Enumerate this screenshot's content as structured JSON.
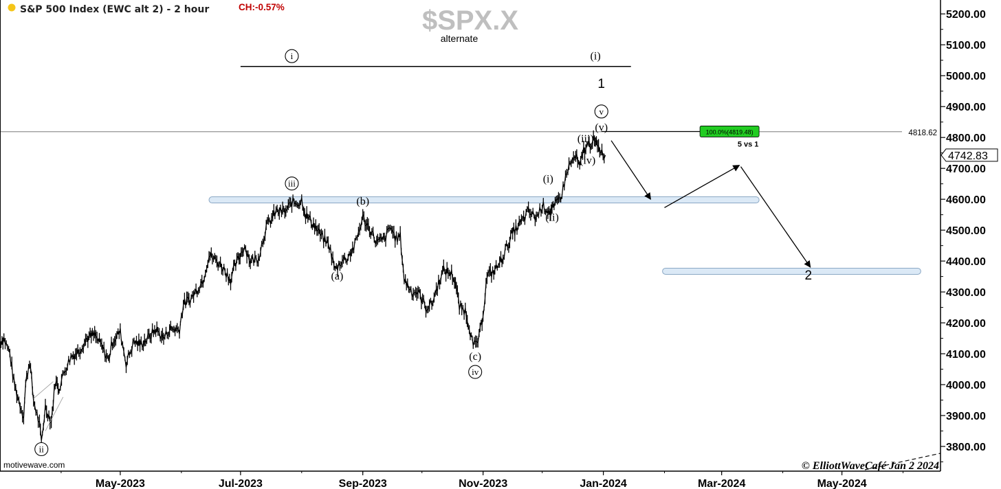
{
  "header": {
    "title": "S&P 500 Index (EWC alt 2) - 2 hour",
    "change": "CH:-0.57%",
    "dot_color": "#f5c518",
    "change_color": "#c00000"
  },
  "watermark": {
    "symbol": "$SPX.X",
    "subtitle": "alternate"
  },
  "footer": {
    "source": "motivewave.com",
    "credit": "© ElliottWaveCafé  Jan 2 2024"
  },
  "colors": {
    "price": "#000000",
    "zone_fill": "#dbe9f6",
    "zone_stroke": "#8aa7c4",
    "target_fill": "#22cc22",
    "axis": "#000000",
    "grid": "#e6e6e6"
  },
  "chart_data": {
    "type": "line",
    "title": "S&P 500 Index (EWC alt 2) - 2 hour",
    "xlabel": "",
    "ylabel": "",
    "x_ticks": [
      "May-2023",
      "Jul-2023",
      "Sep-2023",
      "Nov-2023",
      "Jan-2024",
      "Mar-2024",
      "May-2024"
    ],
    "y_ticks": [
      "3800.00",
      "3900.00",
      "4000.00",
      "4100.00",
      "4200.00",
      "4300.00",
      "4400.00",
      "4500.00",
      "4600.00",
      "4700.00",
      "4800.00",
      "4900.00",
      "5000.00",
      "5100.00",
      "5200.00"
    ],
    "ylim": [
      3720,
      5245
    ],
    "xlim": [
      "2023-03-01",
      "2024-06-20"
    ],
    "grid": true,
    "current_price": "4742.83",
    "reference_line": {
      "label": "4818.62",
      "value": 4818.62
    },
    "target_box": {
      "label": "100.0%(4819.48)",
      "value": 4819.48,
      "note": "5 vs 1"
    },
    "series": [
      {
        "points": [
          [
            "2023-03-01",
            4140
          ],
          [
            "2023-03-03",
            4150
          ],
          [
            "2023-03-06",
            4100
          ],
          [
            "2023-03-08",
            4010
          ],
          [
            "2023-03-10",
            3960
          ],
          [
            "2023-03-13",
            3900
          ],
          [
            "2023-03-14",
            4000
          ],
          [
            "2023-03-16",
            4080
          ],
          [
            "2023-03-18",
            3950
          ],
          [
            "2023-03-21",
            3870
          ],
          [
            "2023-03-22",
            3810
          ],
          [
            "2023-03-24",
            3930
          ],
          [
            "2023-03-27",
            3880
          ],
          [
            "2023-03-29",
            4010
          ],
          [
            "2023-03-31",
            3990
          ],
          [
            "2023-04-03",
            4050
          ],
          [
            "2023-04-06",
            4090
          ],
          [
            "2023-04-10",
            4110
          ],
          [
            "2023-04-14",
            4150
          ],
          [
            "2023-04-18",
            4160
          ],
          [
            "2023-04-21",
            4130
          ],
          [
            "2023-04-25",
            4080
          ],
          [
            "2023-04-27",
            4140
          ],
          [
            "2023-05-01",
            4170
          ],
          [
            "2023-05-04",
            4070
          ],
          [
            "2023-05-08",
            4140
          ],
          [
            "2023-05-11",
            4130
          ],
          [
            "2023-05-15",
            4150
          ],
          [
            "2023-05-19",
            4180
          ],
          [
            "2023-05-23",
            4150
          ],
          [
            "2023-05-26",
            4180
          ],
          [
            "2023-05-31",
            4180
          ],
          [
            "2023-06-02",
            4260
          ],
          [
            "2023-06-06",
            4280
          ],
          [
            "2023-06-09",
            4310
          ],
          [
            "2023-06-12",
            4340
          ],
          [
            "2023-06-15",
            4420
          ],
          [
            "2023-06-19",
            4400
          ],
          [
            "2023-06-22",
            4380
          ],
          [
            "2023-06-26",
            4340
          ],
          [
            "2023-06-28",
            4380
          ],
          [
            "2023-07-03",
            4450
          ],
          [
            "2023-07-06",
            4400
          ],
          [
            "2023-07-10",
            4410
          ],
          [
            "2023-07-14",
            4510
          ],
          [
            "2023-07-19",
            4560
          ],
          [
            "2023-07-24",
            4560
          ],
          [
            "2023-07-27",
            4590
          ],
          [
            "2023-07-31",
            4590
          ],
          [
            "2023-08-01",
            4600
          ],
          [
            "2023-08-03",
            4550
          ],
          [
            "2023-08-07",
            4520
          ],
          [
            "2023-08-11",
            4480
          ],
          [
            "2023-08-15",
            4450
          ],
          [
            "2023-08-18",
            4370
          ],
          [
            "2023-08-21",
            4400
          ],
          [
            "2023-08-24",
            4410
          ],
          [
            "2023-08-28",
            4450
          ],
          [
            "2023-08-31",
            4520
          ],
          [
            "2023-09-01",
            4540
          ],
          [
            "2023-09-05",
            4500
          ],
          [
            "2023-09-08",
            4460
          ],
          [
            "2023-09-12",
            4470
          ],
          [
            "2023-09-15",
            4510
          ],
          [
            "2023-09-18",
            4470
          ],
          [
            "2023-09-20",
            4480
          ],
          [
            "2023-09-22",
            4340
          ],
          [
            "2023-09-26",
            4300
          ],
          [
            "2023-09-29",
            4300
          ],
          [
            "2023-10-03",
            4250
          ],
          [
            "2023-10-06",
            4260
          ],
          [
            "2023-10-10",
            4340
          ],
          [
            "2023-10-12",
            4370
          ],
          [
            "2023-10-16",
            4360
          ],
          [
            "2023-10-18",
            4330
          ],
          [
            "2023-10-20",
            4250
          ],
          [
            "2023-10-23",
            4240
          ],
          [
            "2023-10-25",
            4190
          ],
          [
            "2023-10-27",
            4120
          ],
          [
            "2023-10-30",
            4150
          ],
          [
            "2023-11-01",
            4230
          ],
          [
            "2023-11-03",
            4350
          ],
          [
            "2023-11-07",
            4370
          ],
          [
            "2023-11-10",
            4400
          ],
          [
            "2023-11-14",
            4460
          ],
          [
            "2023-11-16",
            4490
          ],
          [
            "2023-11-21",
            4530
          ],
          [
            "2023-11-24",
            4560
          ],
          [
            "2023-11-28",
            4540
          ],
          [
            "2023-12-01",
            4580
          ],
          [
            "2023-12-05",
            4560
          ],
          [
            "2023-12-07",
            4570
          ],
          [
            "2023-12-11",
            4620
          ],
          [
            "2023-12-14",
            4700
          ],
          [
            "2023-12-18",
            4740
          ],
          [
            "2023-12-20",
            4700
          ],
          [
            "2023-12-22",
            4760
          ],
          [
            "2023-12-27",
            4790
          ],
          [
            "2023-12-29",
            4770
          ],
          [
            "2024-01-02",
            4742.83
          ]
        ]
      }
    ],
    "zones": [
      {
        "from": "2023-06-15",
        "to": "2024-03-20",
        "low": 4588,
        "high": 4608
      },
      {
        "from": "2024-01-31",
        "to": "2024-06-10",
        "low": 4357,
        "high": 4377
      }
    ],
    "projection": [
      [
        "2024-01-05",
        4790
      ],
      [
        "2024-01-25",
        4600
      ]
    ],
    "projection2": [
      [
        "2024-02-01",
        4573
      ],
      [
        "2024-03-10",
        4710
      ],
      [
        "2024-04-15",
        4380
      ]
    ],
    "wave_labels": [
      {
        "text": "ii",
        "circled": true,
        "x": "2023-03-22",
        "y": 3780
      },
      {
        "text": "iii",
        "circled": true,
        "x": "2023-07-27",
        "y": 4640
      },
      {
        "text": "(a)",
        "circled": false,
        "x": "2023-08-19",
        "y": 4340
      },
      {
        "text": "(b)",
        "circled": false,
        "x": "2023-09-01",
        "y": 4583
      },
      {
        "text": "(c)",
        "circled": false,
        "x": "2023-10-28",
        "y": 4080
      },
      {
        "text": "iv",
        "circled": true,
        "x": "2023-10-28",
        "y": 4030
      },
      {
        "text": "(i)",
        "circled": false,
        "x": "2023-12-04",
        "y": 4655
      },
      {
        "text": "(ii)",
        "circled": false,
        "x": "2023-12-06",
        "y": 4530
      },
      {
        "text": "(iii)",
        "circled": false,
        "x": "2023-12-23",
        "y": 4785
      },
      {
        "text": "(iv)",
        "circled": false,
        "x": "2023-12-24",
        "y": 4715
      },
      {
        "text": "(v)",
        "circled": false,
        "x": "2023-12-31",
        "y": 4822
      },
      {
        "text": "v",
        "circled": true,
        "x": "2023-12-31",
        "y": 4873
      },
      {
        "text": "1",
        "circled": false,
        "x": "2023-12-31",
        "y": 4960
      }
    ],
    "degree_line": {
      "from": "2023-07-01",
      "to": "2024-01-15",
      "value": 5030,
      "labels": [
        {
          "text": "i",
          "circled": true,
          "x": "2023-07-27"
        },
        {
          "text": "(i)",
          "circled": false,
          "x": "2023-12-28"
        }
      ]
    },
    "target_label": "2"
  }
}
